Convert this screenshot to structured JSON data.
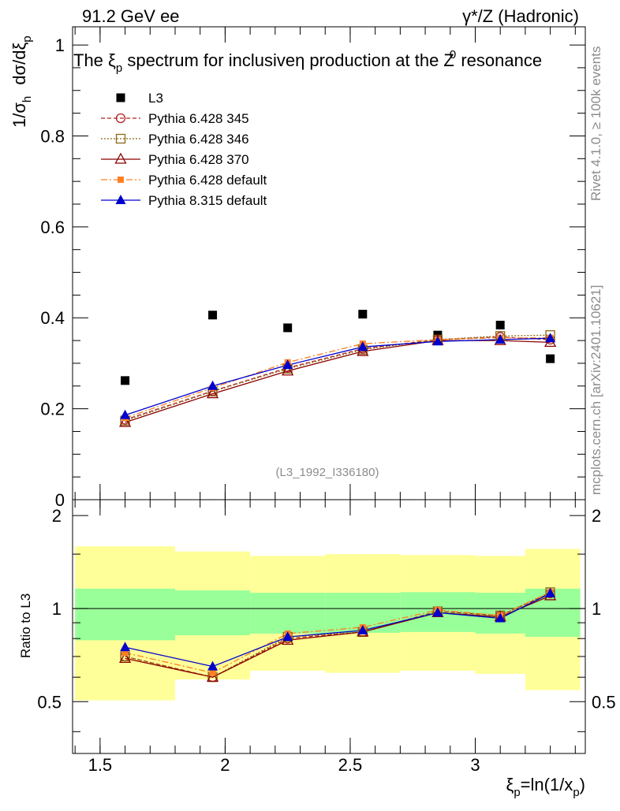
{
  "header": {
    "energy_label": "91.2 GeV ee",
    "process_label": "γ*/Z (Hadronic)"
  },
  "side_labels": {
    "rivet": "Rivet 4.1.0, ≥ 100k events",
    "mcplots": "mcplots.cern.ch [arXiv:2401.10621]"
  },
  "colors": {
    "data": "#000000",
    "py345": "#b22222",
    "py346": "#8b6914",
    "py370": "#8b0000",
    "py6def": "#ff7f24",
    "py8": "#0000cc",
    "band_inner": "#99ff99",
    "band_outer": "#ffff99"
  },
  "chart_data": [
    {
      "type": "scatter",
      "id": "main",
      "title": "The ξp spectrum for inclusiveη production at the Z0 resonance",
      "title_parts": {
        "pre": "The ξ",
        "sub": "p",
        "mid": " spectrum for inclusiveη production at the Z",
        "sup": "0",
        "post": " resonance"
      },
      "ylabel": "1/σh dσ/dξp",
      "ylabel_parts": {
        "a": "1/σ",
        "a_sub": "h",
        "b": "dσ/dξ",
        "b_sub": "p"
      },
      "watermark": "(L3_1992_I336180)",
      "xlim": [
        1.39,
        3.44
      ],
      "ylim": [
        0,
        1.04
      ],
      "yticks": [
        0,
        0.2,
        0.4,
        0.6,
        0.8,
        1
      ],
      "ytick_labels": [
        "0",
        "0.2",
        "0.4",
        "0.6",
        "0.8",
        "1"
      ],
      "legend_position": "top-left",
      "series": [
        {
          "key": "data",
          "name": "L3",
          "style": "square-filled",
          "dash": "",
          "x": [
            1.6,
            1.95,
            2.25,
            2.55,
            2.85,
            3.1,
            3.3
          ],
          "y": [
            0.262,
            0.406,
            0.378,
            0.408,
            0.362,
            0.384,
            0.31
          ]
        },
        {
          "key": "py345",
          "name": "Pythia 6.428 345",
          "style": "circle-open",
          "dash": "5,3",
          "x": [
            1.6,
            1.95,
            2.25,
            2.55,
            2.85,
            3.1,
            3.3
          ],
          "y": [
            0.176,
            0.239,
            0.29,
            0.332,
            0.352,
            0.358,
            0.352
          ]
        },
        {
          "key": "py346",
          "name": "Pythia 6.428 346",
          "style": "square-open",
          "dash": "2,2",
          "x": [
            1.6,
            1.95,
            2.25,
            2.55,
            2.85,
            3.1,
            3.3
          ],
          "y": [
            0.174,
            0.238,
            0.288,
            0.33,
            0.352,
            0.36,
            0.362
          ]
        },
        {
          "key": "py370",
          "name": "Pythia 6.428 370",
          "style": "triangle-open",
          "dash": "",
          "x": [
            1.6,
            1.95,
            2.25,
            2.55,
            2.85,
            3.1,
            3.3
          ],
          "y": [
            0.17,
            0.233,
            0.283,
            0.326,
            0.35,
            0.35,
            0.346
          ]
        },
        {
          "key": "py6def",
          "name": "Pythia 6.428 default",
          "style": "square-filled-small",
          "dash": "8,3,2,3",
          "x": [
            1.6,
            1.95,
            2.25,
            2.55,
            2.85,
            3.1,
            3.3
          ],
          "y": [
            0.18,
            0.246,
            0.302,
            0.343,
            0.352,
            0.356,
            0.356
          ]
        },
        {
          "key": "py8",
          "name": "Pythia 8.315 default",
          "style": "triangle-filled",
          "dash": "",
          "x": [
            1.6,
            1.95,
            2.25,
            2.55,
            2.85,
            3.1,
            3.3
          ],
          "y": [
            0.186,
            0.25,
            0.296,
            0.336,
            0.348,
            0.352,
            0.355
          ]
        }
      ]
    },
    {
      "type": "scatter",
      "id": "ratio",
      "ylabel": "Ratio to L3",
      "xlabel": "ξp=ln(1/xp)",
      "xlabel_parts": {
        "a": "ξ",
        "a_sub": "p",
        "b": "=ln(1/x",
        "b_sub": "p",
        "c": ")"
      },
      "xlim": [
        1.39,
        3.44
      ],
      "ylim": [
        0.34,
        2.25
      ],
      "yticks": [
        0.5,
        1,
        2
      ],
      "ytick_labels": [
        "0.5",
        "1",
        "2"
      ],
      "xticks": [
        1.5,
        2,
        2.5,
        3
      ],
      "xtick_labels": [
        "1.5",
        "2",
        "2.5",
        "3"
      ],
      "bands": [
        {
          "x0": 1.4,
          "x1": 1.8,
          "inner": [
            0.79,
            1.16
          ],
          "outer": [
            0.505,
            1.59
          ]
        },
        {
          "x0": 1.8,
          "x1": 2.1,
          "inner": [
            0.82,
            1.145
          ],
          "outer": [
            0.59,
            1.53
          ]
        },
        {
          "x0": 2.1,
          "x1": 2.4,
          "inner": [
            0.83,
            1.125
          ],
          "outer": [
            0.63,
            1.48
          ]
        },
        {
          "x0": 2.4,
          "x1": 2.7,
          "inner": [
            0.835,
            1.125
          ],
          "outer": [
            0.62,
            1.5
          ]
        },
        {
          "x0": 2.7,
          "x1": 3.0,
          "inner": [
            0.84,
            1.13
          ],
          "outer": [
            0.63,
            1.49
          ]
        },
        {
          "x0": 3.0,
          "x1": 3.2,
          "inner": [
            0.83,
            1.125
          ],
          "outer": [
            0.615,
            1.48
          ]
        },
        {
          "x0": 3.2,
          "x1": 3.42,
          "inner": [
            0.81,
            1.16
          ],
          "outer": [
            0.545,
            1.56
          ]
        }
      ],
      "series": [
        {
          "key": "py345",
          "x": [
            1.6,
            1.95,
            2.25,
            2.55,
            2.85,
            3.1,
            3.3
          ],
          "y": [
            0.7,
            0.6,
            0.8,
            0.84,
            0.98,
            0.95,
            1.12
          ]
        },
        {
          "key": "py346",
          "x": [
            1.6,
            1.95,
            2.25,
            2.55,
            2.85,
            3.1,
            3.3
          ],
          "y": [
            0.7,
            0.6,
            0.81,
            0.84,
            0.98,
            0.95,
            1.13
          ]
        },
        {
          "key": "py370",
          "x": [
            1.6,
            1.95,
            2.25,
            2.55,
            2.85,
            3.1,
            3.3
          ],
          "y": [
            0.69,
            0.6,
            0.79,
            0.84,
            0.97,
            0.94,
            1.1
          ]
        },
        {
          "key": "py6def",
          "x": [
            1.6,
            1.95,
            2.25,
            2.55,
            2.85,
            3.1,
            3.3
          ],
          "y": [
            0.72,
            0.62,
            0.83,
            0.87,
            0.99,
            0.95,
            1.13
          ]
        },
        {
          "key": "py8",
          "x": [
            1.6,
            1.95,
            2.25,
            2.55,
            2.85,
            3.1,
            3.3
          ],
          "y": [
            0.75,
            0.65,
            0.81,
            0.85,
            0.97,
            0.93,
            1.12
          ]
        }
      ]
    }
  ]
}
